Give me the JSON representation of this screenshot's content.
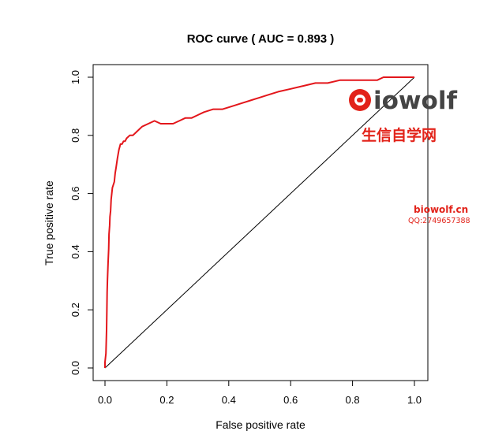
{
  "chart_data": {
    "type": "line",
    "title": "ROC curve ( AUC =  0.893 )",
    "xlabel": "False positive rate",
    "ylabel": "True positive rate",
    "xlim": [
      0,
      1
    ],
    "ylim": [
      0,
      1
    ],
    "x_ticks": [
      "0.0",
      "0.2",
      "0.4",
      "0.6",
      "0.8",
      "1.0"
    ],
    "y_ticks": [
      "0.0",
      "0.2",
      "0.4",
      "0.6",
      "0.8",
      "1.0"
    ],
    "grid": false,
    "series": [
      {
        "color": "#e3161b",
        "x": [
          0.0,
          0.0,
          0.003,
          0.005,
          0.006,
          0.007,
          0.008,
          0.01,
          0.012,
          0.013,
          0.015,
          0.016,
          0.018,
          0.02,
          0.022,
          0.024,
          0.027,
          0.03,
          0.033,
          0.036,
          0.04,
          0.045,
          0.05,
          0.055,
          0.06,
          0.065,
          0.07,
          0.08,
          0.09,
          0.1,
          0.11,
          0.12,
          0.14,
          0.16,
          0.18,
          0.2,
          0.22,
          0.24,
          0.26,
          0.28,
          0.3,
          0.32,
          0.35,
          0.38,
          0.41,
          0.44,
          0.47,
          0.5,
          0.53,
          0.56,
          0.6,
          0.64,
          0.68,
          0.72,
          0.76,
          0.8,
          0.84,
          0.88,
          0.9,
          0.92,
          0.95,
          1.0
        ],
        "y": [
          0.0,
          0.02,
          0.05,
          0.13,
          0.2,
          0.26,
          0.3,
          0.36,
          0.41,
          0.46,
          0.49,
          0.52,
          0.54,
          0.58,
          0.6,
          0.62,
          0.63,
          0.64,
          0.67,
          0.69,
          0.72,
          0.75,
          0.77,
          0.77,
          0.78,
          0.78,
          0.79,
          0.8,
          0.8,
          0.81,
          0.82,
          0.83,
          0.84,
          0.85,
          0.84,
          0.84,
          0.84,
          0.85,
          0.86,
          0.86,
          0.87,
          0.88,
          0.89,
          0.89,
          0.9,
          0.91,
          0.92,
          0.93,
          0.94,
          0.95,
          0.96,
          0.97,
          0.98,
          0.98,
          0.99,
          0.99,
          0.99,
          0.99,
          1.0,
          1.0,
          1.0,
          1.0
        ]
      }
    ],
    "reference_line": [
      [
        0,
        0
      ],
      [
        1,
        1
      ]
    ]
  },
  "watermark": {
    "logo_text": "biowolf",
    "cn_text": "生信自学网",
    "url": "biowolf.cn",
    "qq": "QQ:2749657388",
    "color": "#e2231a"
  }
}
